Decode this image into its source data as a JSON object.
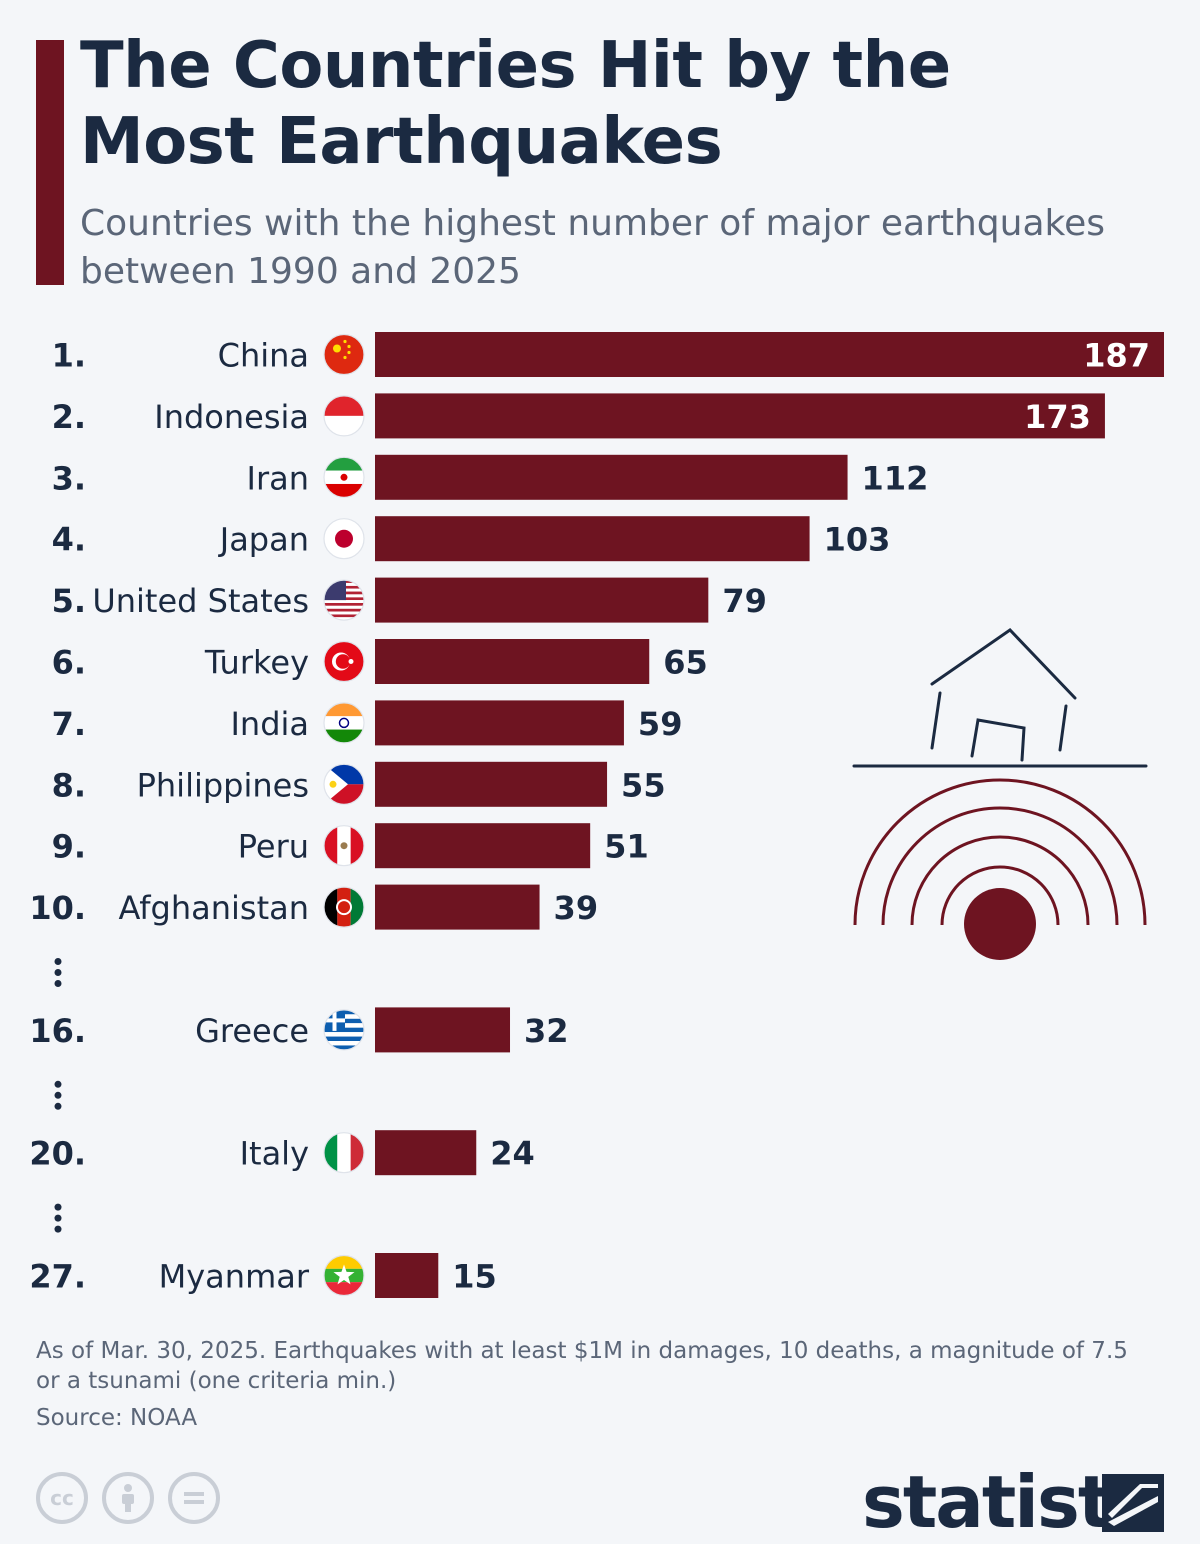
{
  "title": "The Countries Hit by the Most Earthquakes",
  "subtitle": "Countries with the highest number of major earthquakes between 1990 and 2025",
  "footnote": "As of Mar. 30, 2025. Earthquakes with at least $1M in damages, 10 deaths, a magnitude of 7.5 or a tsunami (one criteria min.)",
  "source": "Source: NOAA",
  "brand": "statista",
  "colors": {
    "bar": "#6e1421",
    "accent": "#6e1421",
    "text": "#1b2a41",
    "muted": "#5b6678"
  },
  "license_icons": [
    "cc-icon",
    "attribution-icon",
    "no-derivatives-icon"
  ],
  "chart_data": {
    "type": "bar",
    "orientation": "horizontal",
    "categories": [
      "China",
      "Indonesia",
      "Iran",
      "Japan",
      "United States",
      "Turkey",
      "India",
      "Philippines",
      "Peru",
      "Afghanistan",
      "Greece",
      "Italy",
      "Myanmar"
    ],
    "ranks": [
      "1.",
      "2.",
      "3.",
      "4.",
      "5.",
      "6.",
      "7.",
      "8.",
      "9.",
      "10.",
      "16.",
      "20.",
      "27."
    ],
    "values": [
      187,
      173,
      112,
      103,
      79,
      65,
      59,
      55,
      51,
      39,
      32,
      24,
      15
    ],
    "flags": [
      "china-flag-icon",
      "indonesia-flag-icon",
      "iran-flag-icon",
      "japan-flag-icon",
      "us-flag-icon",
      "turkey-flag-icon",
      "india-flag-icon",
      "philippines-flag-icon",
      "peru-flag-icon",
      "afghanistan-flag-icon",
      "greece-flag-icon",
      "italy-flag-icon",
      "myanmar-flag-icon"
    ],
    "gaps_after": [
      "Afghanistan",
      "Greece",
      "Italy"
    ],
    "xlim": [
      0,
      187
    ],
    "grid": false,
    "legend": "none",
    "illustration": "house-earthquake-icon"
  }
}
